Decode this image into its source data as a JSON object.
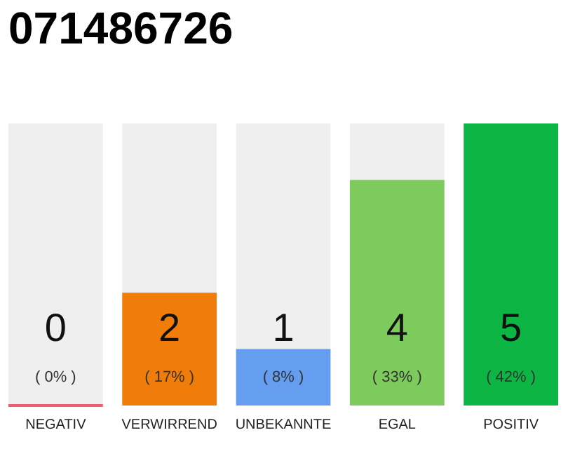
{
  "chart_data": {
    "type": "bar",
    "title": "071486726",
    "categories": [
      "NEGATIV",
      "VERWIRREND",
      "UNBEKANNTE",
      "EGAL",
      "POSITIV"
    ],
    "values": [
      0,
      2,
      1,
      4,
      5
    ],
    "colors": [
      "#e8203a",
      "#f07d0a",
      "#659df0",
      "#7dcb5d",
      "#0db544"
    ],
    "data_labels": true,
    "annotations": [
      "( 0% )",
      "( 17% )",
      "( 8% )",
      "( 33% )",
      "( 42% )"
    ]
  }
}
